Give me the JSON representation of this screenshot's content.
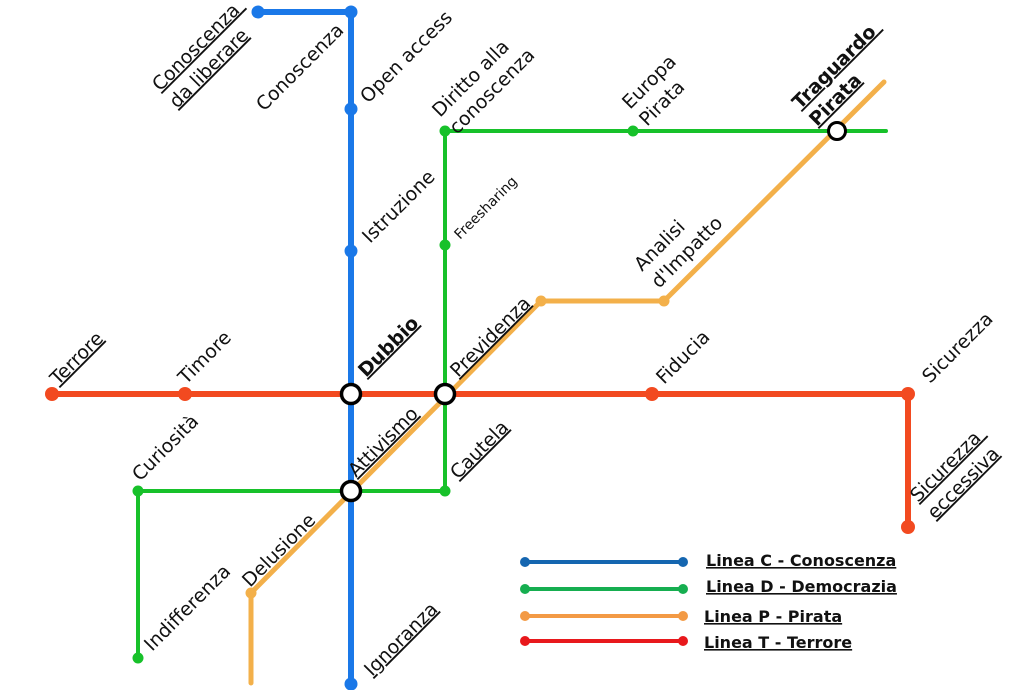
{
  "lines": {
    "c": {
      "color": "#1a78e8",
      "legend_color": "#1566b0",
      "legend_label": "Linea C - Conoscenza"
    },
    "d": {
      "color": "#17c12a",
      "legend_color": "#16ae50",
      "legend_label": "Linea D - Democrazia"
    },
    "p": {
      "color": "#f3b04a",
      "legend_color": "#f39a45",
      "legend_label": "Linea P - Pirata"
    },
    "t": {
      "color": "#f24a20",
      "legend_color": "#e8181c",
      "legend_label": "Linea T - Terrore"
    }
  },
  "stations": {
    "conoscenza_da_liberare": [
      "Conoscenza",
      "da liberare"
    ],
    "conoscenza": "Conoscenza",
    "open_access": "Open access",
    "istruzione": "Istruzione",
    "dubbio": "Dubbio",
    "attivismo": "Attivismo",
    "ignoranza": "Ignoranza",
    "diritto_alla_conoscenza": [
      "Diritto alla",
      "conoscenza"
    ],
    "freesharing": "Freesharing",
    "previdenza": "Previdenza",
    "cautela": "Cautela",
    "europa_pirata": [
      "Europa",
      "Pirata"
    ],
    "traguardo_pirata": [
      "Traguardo",
      "Pirata"
    ],
    "analisi_impatto": [
      "Analisi",
      "d'Impatto"
    ],
    "delusione": "Delusione",
    "terrore": "Terrore",
    "timore": "Timore",
    "fiducia": "Fiducia",
    "sicurezza": "Sicurezza",
    "sicurezza_eccessiva": [
      "Sicurezza",
      "eccessiva"
    ],
    "curiosita": "Curiosità",
    "indifferenza": "Indifferenza"
  }
}
